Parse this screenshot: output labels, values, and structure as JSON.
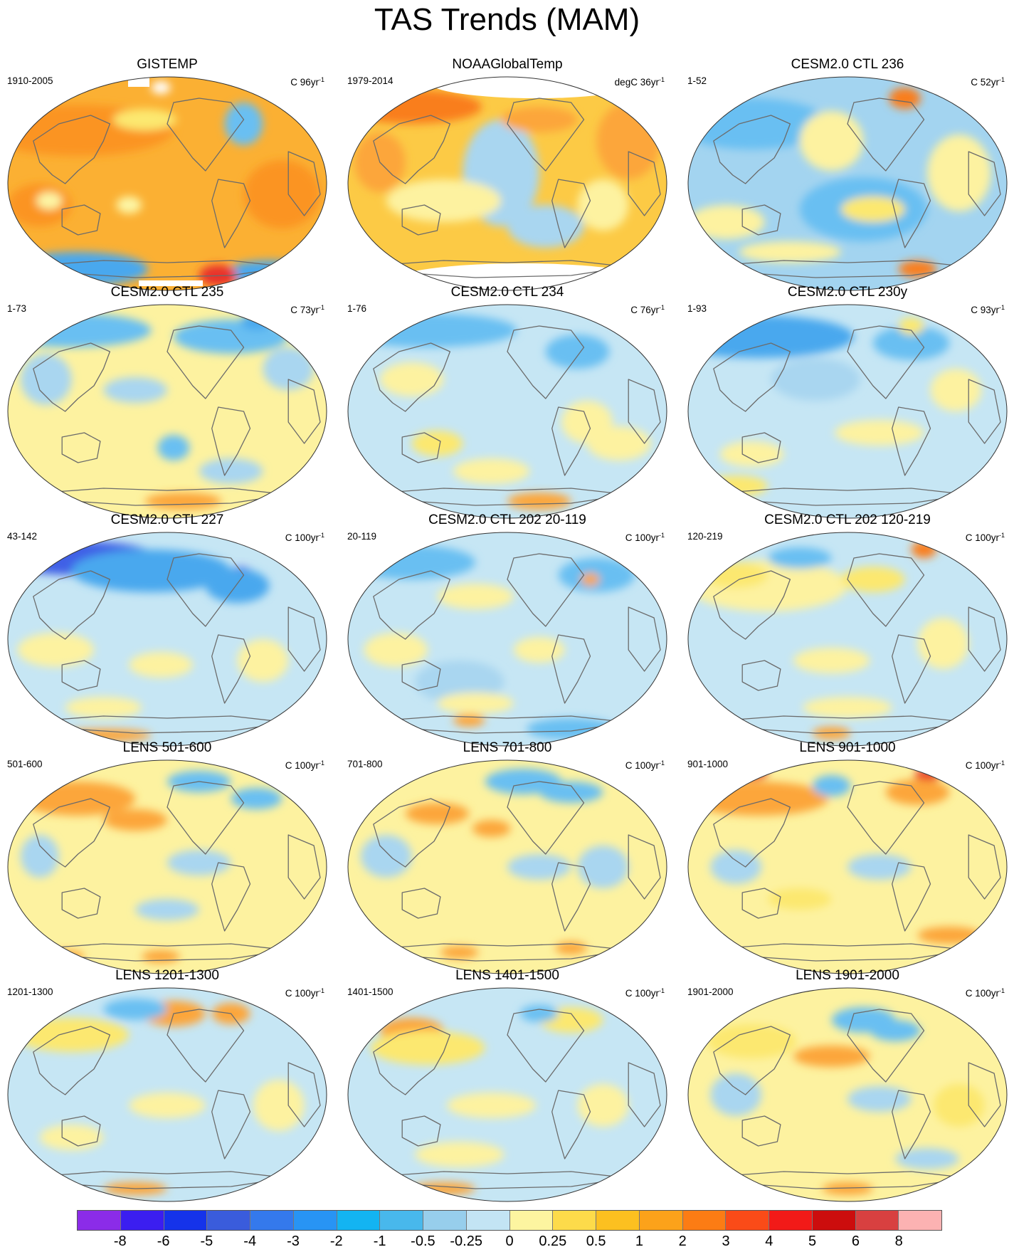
{
  "title": "TAS Trends (MAM)",
  "colors": {
    "ocean_base": "#c6e6f4",
    "coastline": "#6b6b6b",
    "outline": "#333333",
    "no_data": "#ffffff"
  },
  "panels": [
    {
      "title": "GISTEMP",
      "left_label": "1910-2005",
      "unit": "C",
      "right_value": "96yr",
      "right_sup": "-1",
      "base": "#fbb033",
      "missing": [
        "arctic-gap",
        "antarctic-gap"
      ],
      "blobs": [
        [
          "#fb9423",
          0.22,
          0.25,
          0.3,
          0.12
        ],
        [
          "#fb9423",
          0.86,
          0.55,
          0.12,
          0.16
        ],
        [
          "#fb9423",
          0.1,
          0.6,
          0.1,
          0.1
        ],
        [
          "#fce870",
          0.43,
          0.2,
          0.1,
          0.05
        ],
        [
          "#fdf6a5",
          0.13,
          0.58,
          0.04,
          0.04
        ],
        [
          "#fdf6a5",
          0.38,
          0.6,
          0.04,
          0.04
        ],
        [
          "#ffffff",
          0.48,
          0.05,
          0.03,
          0.03
        ],
        [
          "#69bff2",
          0.74,
          0.22,
          0.06,
          0.1
        ],
        [
          "#4aa8ee",
          0.22,
          0.9,
          0.22,
          0.08
        ],
        [
          "#4aa8ee",
          0.82,
          0.92,
          0.14,
          0.06
        ],
        [
          "#e8302b",
          0.66,
          0.93,
          0.06,
          0.05
        ]
      ]
    },
    {
      "title": "NOAAGlobalTemp",
      "left_label": "1979-2014",
      "unit": "degC",
      "right_value": "36yr",
      "right_sup": "-1",
      "base": "#fcca45",
      "missing": [
        "arctic-gap",
        "antarctic-gap"
      ],
      "blobs": [
        [
          "#f97e1c",
          0.2,
          0.14,
          0.22,
          0.08
        ],
        [
          "#fca63a",
          0.88,
          0.3,
          0.1,
          0.18
        ],
        [
          "#a9d6f0",
          0.48,
          0.45,
          0.12,
          0.25
        ],
        [
          "#a9d6f0",
          0.62,
          0.7,
          0.12,
          0.1
        ],
        [
          "#fdf2a0",
          0.3,
          0.58,
          0.18,
          0.1
        ],
        [
          "#fca63a",
          0.6,
          0.2,
          0.12,
          0.06
        ],
        [
          "#fdf2a0",
          0.8,
          0.6,
          0.08,
          0.12
        ],
        [
          "#fca63a",
          0.1,
          0.4,
          0.08,
          0.14
        ]
      ]
    },
    {
      "title": "CESM2.0 CTL 236",
      "left_label": "1-52",
      "unit": "C",
      "right_value": "52yr",
      "right_sup": "-1",
      "base": "#a3d4f0",
      "missing": [],
      "blobs": [
        [
          "#69bff2",
          0.2,
          0.22,
          0.24,
          0.12
        ],
        [
          "#69bff2",
          0.55,
          0.62,
          0.2,
          0.15
        ],
        [
          "#fdf2a0",
          0.45,
          0.3,
          0.1,
          0.14
        ],
        [
          "#fdf2a0",
          0.12,
          0.68,
          0.12,
          0.08
        ],
        [
          "#fce870",
          0.58,
          0.62,
          0.1,
          0.06
        ],
        [
          "#fdf2a0",
          0.85,
          0.45,
          0.1,
          0.18
        ],
        [
          "#f97e1c",
          0.68,
          0.1,
          0.05,
          0.05
        ],
        [
          "#f97e1c",
          0.72,
          0.9,
          0.06,
          0.04
        ],
        [
          "#fdf2a0",
          0.32,
          0.82,
          0.16,
          0.05
        ]
      ]
    },
    {
      "title": "CESM2.0 CTL 235",
      "left_label": "1-73",
      "unit": "C",
      "right_value": "73yr",
      "right_sup": "-1",
      "base": "#fdf2a0",
      "missing": [],
      "blobs": [
        [
          "#69bff2",
          0.2,
          0.12,
          0.25,
          0.08
        ],
        [
          "#69bff2",
          0.7,
          0.15,
          0.18,
          0.08
        ],
        [
          "#69bff2",
          0.52,
          0.67,
          0.05,
          0.06
        ],
        [
          "#a9d6f0",
          0.12,
          0.35,
          0.08,
          0.12
        ],
        [
          "#a9d6f0",
          0.88,
          0.3,
          0.08,
          0.1
        ],
        [
          "#a9d6f0",
          0.4,
          0.4,
          0.1,
          0.06
        ],
        [
          "#a9d6f0",
          0.7,
          0.78,
          0.1,
          0.06
        ],
        [
          "#4aa8ee",
          0.78,
          0.08,
          0.05,
          0.04
        ],
        [
          "#fca63a",
          0.55,
          0.92,
          0.12,
          0.04
        ]
      ]
    },
    {
      "title": "CESM2.0 CTL 234",
      "left_label": "1-76",
      "unit": "C",
      "right_value": "76yr",
      "right_sup": "-1",
      "base": "#c6e6f4",
      "missing": [],
      "blobs": [
        [
          "#69bff2",
          0.25,
          0.12,
          0.28,
          0.08
        ],
        [
          "#3f61e6",
          0.71,
          0.2,
          0.04,
          0.04
        ],
        [
          "#69bff2",
          0.72,
          0.22,
          0.1,
          0.08
        ],
        [
          "#fdf2a0",
          0.2,
          0.35,
          0.1,
          0.08
        ],
        [
          "#fce870",
          0.28,
          0.65,
          0.08,
          0.06
        ],
        [
          "#fdf2a0",
          0.45,
          0.78,
          0.12,
          0.06
        ],
        [
          "#fdf2a0",
          0.75,
          0.55,
          0.08,
          0.1
        ],
        [
          "#fdf2a0",
          0.85,
          0.65,
          0.1,
          0.08
        ],
        [
          "#fca63a",
          0.6,
          0.92,
          0.1,
          0.04
        ]
      ]
    },
    {
      "title": "CESM2.0 CTL 230y",
      "left_label": "1-93",
      "unit": "C",
      "right_value": "93yr",
      "right_sup": "-1",
      "base": "#c6e6f4",
      "missing": [],
      "blobs": [
        [
          "#4aa8ee",
          0.22,
          0.15,
          0.3,
          0.1
        ],
        [
          "#69bff2",
          0.7,
          0.18,
          0.12,
          0.08
        ],
        [
          "#fce870",
          0.7,
          0.1,
          0.04,
          0.04
        ],
        [
          "#fdf2a0",
          0.6,
          0.6,
          0.14,
          0.06
        ],
        [
          "#fdf2a0",
          0.2,
          0.7,
          0.1,
          0.06
        ],
        [
          "#fdf2a0",
          0.84,
          0.4,
          0.08,
          0.1
        ],
        [
          "#a9d6f0",
          0.4,
          0.35,
          0.14,
          0.1
        ],
        [
          "#fce870",
          0.15,
          0.85,
          0.1,
          0.05
        ]
      ]
    },
    {
      "title": "CESM2.0 CTL 227",
      "left_label": "43-142",
      "unit": "C",
      "right_value": "100yr",
      "right_sup": "-1",
      "base": "#c6e6f4",
      "missing": [],
      "blobs": [
        [
          "#3f61e6",
          0.22,
          0.12,
          0.25,
          0.08
        ],
        [
          "#4aa8ee",
          0.45,
          0.18,
          0.25,
          0.1
        ],
        [
          "#6a3fe6",
          0.73,
          0.2,
          0.04,
          0.04
        ],
        [
          "#4aa8ee",
          0.72,
          0.25,
          0.1,
          0.08
        ],
        [
          "#fdf2a0",
          0.15,
          0.55,
          0.12,
          0.08
        ],
        [
          "#fdf2a0",
          0.48,
          0.62,
          0.1,
          0.06
        ],
        [
          "#fdf2a0",
          0.8,
          0.6,
          0.08,
          0.1
        ],
        [
          "#fdf2a0",
          0.3,
          0.82,
          0.12,
          0.05
        ],
        [
          "#fca63a",
          0.3,
          0.95,
          0.15,
          0.03
        ]
      ]
    },
    {
      "title": "CESM2.0 CTL 202 20-119",
      "left_label": "20-119",
      "unit": "C",
      "right_value": "100yr",
      "right_sup": "-1",
      "base": "#c6e6f4",
      "missing": [],
      "blobs": [
        [
          "#69bff2",
          0.2,
          0.14,
          0.2,
          0.08
        ],
        [
          "#69bff2",
          0.78,
          0.2,
          0.12,
          0.08
        ],
        [
          "#fca63a",
          0.76,
          0.22,
          0.03,
          0.03
        ],
        [
          "#fdf2a0",
          0.4,
          0.3,
          0.12,
          0.06
        ],
        [
          "#fdf2a0",
          0.15,
          0.55,
          0.1,
          0.08
        ],
        [
          "#fdf2a0",
          0.6,
          0.55,
          0.08,
          0.06
        ],
        [
          "#a9d6f0",
          0.35,
          0.7,
          0.14,
          0.1
        ],
        [
          "#fdf2a0",
          0.4,
          0.8,
          0.12,
          0.05
        ],
        [
          "#fca63a",
          0.38,
          0.88,
          0.05,
          0.03
        ],
        [
          "#69bff2",
          0.7,
          0.92,
          0.14,
          0.05
        ]
      ]
    },
    {
      "title": "CESM2.0 CTL 202 120-219",
      "left_label": "120-219",
      "unit": "C",
      "right_value": "100yr",
      "right_sup": "-1",
      "base": "#c6e6f4",
      "missing": [],
      "blobs": [
        [
          "#fdf2a0",
          0.25,
          0.25,
          0.25,
          0.12
        ],
        [
          "#fce870",
          0.15,
          0.2,
          0.1,
          0.06
        ],
        [
          "#f97e1c",
          0.74,
          0.08,
          0.04,
          0.04
        ],
        [
          "#fce870",
          0.58,
          0.22,
          0.1,
          0.06
        ],
        [
          "#69bff2",
          0.35,
          0.12,
          0.1,
          0.05
        ],
        [
          "#fdf2a0",
          0.45,
          0.6,
          0.12,
          0.06
        ],
        [
          "#fdf2a0",
          0.8,
          0.52,
          0.08,
          0.12
        ],
        [
          "#fdf2a0",
          0.5,
          0.82,
          0.14,
          0.05
        ],
        [
          "#fca63a",
          0.45,
          0.94,
          0.06,
          0.03
        ]
      ]
    },
    {
      "title": "LENS 501-600",
      "left_label": "501-600",
      "unit": "C",
      "right_value": "100yr",
      "right_sup": "-1",
      "base": "#fdf2a0",
      "missing": [],
      "blobs": [
        [
          "#fca63a",
          0.22,
          0.18,
          0.18,
          0.08
        ],
        [
          "#fca63a",
          0.4,
          0.28,
          0.1,
          0.05
        ],
        [
          "#69bff2",
          0.6,
          0.1,
          0.1,
          0.05
        ],
        [
          "#69bff2",
          0.78,
          0.18,
          0.08,
          0.05
        ],
        [
          "#a9d6f0",
          0.1,
          0.45,
          0.06,
          0.1
        ],
        [
          "#a9d6f0",
          0.6,
          0.48,
          0.1,
          0.06
        ],
        [
          "#a9d6f0",
          0.5,
          0.7,
          0.1,
          0.05
        ],
        [
          "#fca63a",
          0.48,
          0.92,
          0.06,
          0.03
        ],
        [
          "#fca63a",
          0.18,
          0.92,
          0.06,
          0.03
        ]
      ]
    },
    {
      "title": "LENS 701-800",
      "left_label": "701-800",
      "unit": "C",
      "right_value": "100yr",
      "right_sup": "-1",
      "base": "#fdf2a0",
      "missing": [],
      "blobs": [
        [
          "#fca63a",
          0.28,
          0.25,
          0.1,
          0.05
        ],
        [
          "#fca63a",
          0.45,
          0.32,
          0.06,
          0.04
        ],
        [
          "#69bff2",
          0.55,
          0.1,
          0.12,
          0.06
        ],
        [
          "#69bff2",
          0.7,
          0.15,
          0.1,
          0.05
        ],
        [
          "#a9d6f0",
          0.12,
          0.45,
          0.08,
          0.1
        ],
        [
          "#a9d6f0",
          0.6,
          0.5,
          0.1,
          0.06
        ],
        [
          "#a9d6f0",
          0.8,
          0.5,
          0.08,
          0.1
        ],
        [
          "#fca63a",
          0.35,
          0.9,
          0.06,
          0.03
        ],
        [
          "#fca63a",
          0.7,
          0.88,
          0.05,
          0.03
        ]
      ]
    },
    {
      "title": "LENS 901-1000",
      "left_label": "901-1000",
      "unit": "C",
      "right_value": "100yr",
      "right_sup": "-1",
      "base": "#fdf2a0",
      "missing": [],
      "blobs": [
        [
          "#fca63a",
          0.22,
          0.18,
          0.22,
          0.08
        ],
        [
          "#e8302b",
          0.2,
          0.06,
          0.05,
          0.03
        ],
        [
          "#e8302b",
          0.75,
          0.07,
          0.04,
          0.03
        ],
        [
          "#fca63a",
          0.72,
          0.15,
          0.1,
          0.06
        ],
        [
          "#69bff2",
          0.45,
          0.12,
          0.06,
          0.05
        ],
        [
          "#a9d6f0",
          0.15,
          0.5,
          0.08,
          0.08
        ],
        [
          "#a9d6f0",
          0.6,
          0.5,
          0.1,
          0.06
        ],
        [
          "#fca63a",
          0.82,
          0.82,
          0.1,
          0.04
        ],
        [
          "#fce870",
          0.35,
          0.65,
          0.1,
          0.05
        ]
      ]
    },
    {
      "title": "LENS 1201-1300",
      "left_label": "1201-1300",
      "unit": "C",
      "right_value": "100yr",
      "right_sup": "-1",
      "base": "#c6e6f4",
      "missing": [],
      "blobs": [
        [
          "#fce870",
          0.2,
          0.22,
          0.18,
          0.08
        ],
        [
          "#fca63a",
          0.52,
          0.12,
          0.1,
          0.06
        ],
        [
          "#fca63a",
          0.7,
          0.12,
          0.06,
          0.05
        ],
        [
          "#69bff2",
          0.4,
          0.1,
          0.1,
          0.05
        ],
        [
          "#fdf2a0",
          0.5,
          0.55,
          0.12,
          0.06
        ],
        [
          "#fdf2a0",
          0.85,
          0.55,
          0.08,
          0.12
        ],
        [
          "#fdf2a0",
          0.2,
          0.7,
          0.1,
          0.06
        ],
        [
          "#fca63a",
          0.4,
          0.94,
          0.1,
          0.03
        ]
      ]
    },
    {
      "title": "LENS 1401-1500",
      "left_label": "1401-1500",
      "unit": "C",
      "right_value": "100yr",
      "right_sup": "-1",
      "base": "#c6e6f4",
      "missing": [],
      "blobs": [
        [
          "#fca63a",
          0.2,
          0.2,
          0.1,
          0.06
        ],
        [
          "#fce870",
          0.25,
          0.28,
          0.18,
          0.08
        ],
        [
          "#fce870",
          0.7,
          0.15,
          0.1,
          0.06
        ],
        [
          "#69bff2",
          0.6,
          0.12,
          0.06,
          0.04
        ],
        [
          "#fdf2a0",
          0.45,
          0.55,
          0.14,
          0.06
        ],
        [
          "#fdf2a0",
          0.8,
          0.55,
          0.08,
          0.1
        ],
        [
          "#fdf2a0",
          0.35,
          0.78,
          0.14,
          0.06
        ],
        [
          "#fca63a",
          0.3,
          0.94,
          0.1,
          0.03
        ]
      ]
    },
    {
      "title": "LENS 1901-2000",
      "left_label": "1901-2000",
      "unit": "C",
      "right_value": "100yr",
      "right_sup": "-1",
      "base": "#fdf2a0",
      "missing": [],
      "blobs": [
        [
          "#fca63a",
          0.45,
          0.32,
          0.12,
          0.05
        ],
        [
          "#fce870",
          0.2,
          0.25,
          0.14,
          0.08
        ],
        [
          "#69bff2",
          0.55,
          0.15,
          0.1,
          0.06
        ],
        [
          "#69bff2",
          0.65,
          0.2,
          0.08,
          0.05
        ],
        [
          "#a9d6f0",
          0.15,
          0.5,
          0.08,
          0.1
        ],
        [
          "#a9d6f0",
          0.6,
          0.52,
          0.1,
          0.06
        ],
        [
          "#a9d6f0",
          0.75,
          0.8,
          0.1,
          0.05
        ],
        [
          "#fca63a",
          0.5,
          0.94,
          0.08,
          0.03
        ],
        [
          "#fce870",
          0.85,
          0.55,
          0.08,
          0.1
        ]
      ]
    }
  ],
  "colorbar": {
    "colors": [
      "#8b2ce8",
      "#3b1ef0",
      "#1533ea",
      "#3a5cdc",
      "#3479ec",
      "#2894f4",
      "#13b4f2",
      "#48b8ec",
      "#97ceec",
      "#c3e4f4",
      "#fdf5a0",
      "#fddb4a",
      "#fcc020",
      "#fca21a",
      "#fc7c14",
      "#fa4b18",
      "#f21a18",
      "#cc0d0d",
      "#d84040",
      "#fcb2b2"
    ],
    "labels": [
      "-8",
      "-6",
      "-5",
      "-4",
      "-3",
      "-2",
      "-1",
      "-0.5",
      "-0.25",
      "0",
      "0.25",
      "0.5",
      "1",
      "2",
      "3",
      "4",
      "5",
      "6",
      "8"
    ]
  }
}
